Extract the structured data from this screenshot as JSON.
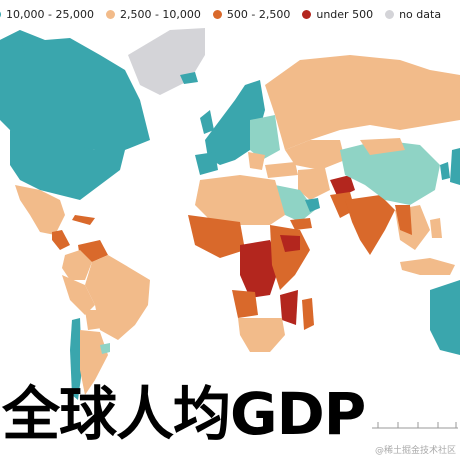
{
  "legend": [
    {
      "label": "10,000 - 25,000",
      "color": "#3aa6ad"
    },
    {
      "label": "2,500 - 10,000",
      "color": "#f2bb8a"
    },
    {
      "label": "500 - 2,500",
      "color": "#d9692b"
    },
    {
      "label": "under 500",
      "color": "#b3261e"
    },
    {
      "label": "no data",
      "color": "#d4d4d8"
    }
  ],
  "colors": {
    "ocean": "#ffffff",
    "teal_light": "#8fd3c5",
    "teal": "#3aa6ad",
    "peach": "#f2bb8a",
    "orange": "#d9692b",
    "red": "#b3261e",
    "gray": "#d4d4d8",
    "border": "#ffffff"
  },
  "title": "全球人均GDP",
  "watermark": "@稀土掘金技术社区"
}
